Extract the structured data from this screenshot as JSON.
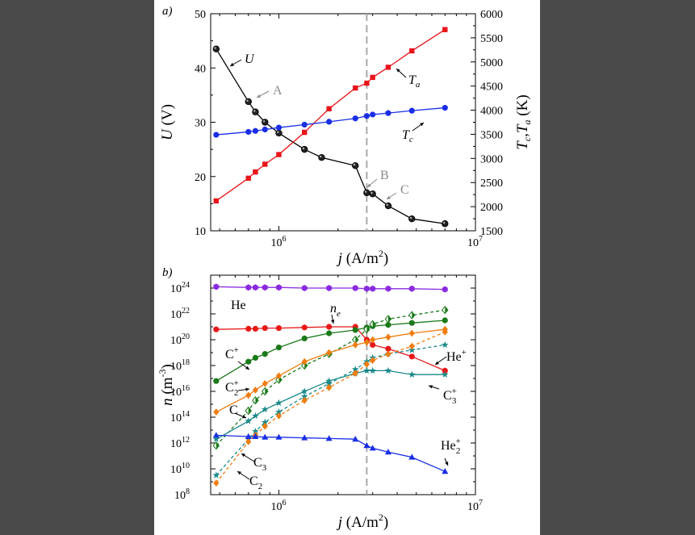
{
  "panel_labels": {
    "a": "a)",
    "b": "b)"
  },
  "chart_data": [
    {
      "type": "line",
      "panel": "a",
      "x_scale": "log",
      "xlim": [
        450000,
        10000000
      ],
      "xticks": [
        {
          "v": 1000000,
          "base": "10",
          "exp": "6"
        },
        {
          "v": 10000000,
          "base": "10",
          "exp": "7"
        }
      ],
      "xlabel": {
        "main": "j",
        "rest": " (A/m",
        "sup": "2",
        "close": ")"
      },
      "ylabel_left": {
        "main": "U",
        "rest": " (V)"
      },
      "ylim_left": [
        10,
        50
      ],
      "yticks_left": [
        "10",
        "20",
        "30",
        "40",
        "50"
      ],
      "ylabel_right": {
        "t1": "T",
        "s1": "c",
        "sep": ",",
        "t2": "T",
        "s2": "a",
        "unit": " (K)"
      },
      "ylim_right": [
        1500,
        6000
      ],
      "yticks_right": [
        "1500",
        "2000",
        "2500",
        "3000",
        "3500",
        "4000",
        "4500",
        "5000",
        "5500",
        "6000"
      ],
      "vline_x": 2800000,
      "series": [
        {
          "name": "U",
          "axis": "left",
          "color": "#000000",
          "marker": "sphere",
          "x": [
            480000,
            700000,
            760000,
            850000,
            1000000,
            1350000,
            1650000,
            2450000,
            2800000,
            3000000,
            3600000,
            4750000,
            7000000
          ],
          "y": [
            43.5,
            33.8,
            31.9,
            30.0,
            28.0,
            25.0,
            23.5,
            22.0,
            17.0,
            16.8,
            14.6,
            12.2,
            11.3
          ]
        },
        {
          "name": "Ta",
          "axis": "right",
          "color": "#e8141a",
          "marker": "square",
          "x": [
            480000,
            700000,
            760000,
            850000,
            1000000,
            1350000,
            1800000,
            2450000,
            2800000,
            3000000,
            3600000,
            4750000,
            7000000
          ],
          "y": [
            2120,
            2590,
            2720,
            2880,
            3080,
            3540,
            4030,
            4460,
            4560,
            4680,
            4890,
            5230,
            5670
          ]
        },
        {
          "name": "Tc",
          "axis": "right",
          "color": "#1a2ee6",
          "marker": "circle",
          "x": [
            480000,
            700000,
            760000,
            850000,
            1000000,
            1350000,
            1800000,
            2450000,
            2800000,
            3000000,
            3600000,
            4750000,
            7000000
          ],
          "y": [
            3490,
            3550,
            3570,
            3600,
            3640,
            3700,
            3760,
            3830,
            3880,
            3910,
            3940,
            3990,
            4050
          ]
        }
      ],
      "annotations": [
        {
          "text": "U",
          "italic": true,
          "color": "#000000"
        },
        {
          "text": "A",
          "italic": false,
          "color": "#8a8a8a"
        },
        {
          "text": "B",
          "italic": false,
          "color": "#8a8a8a"
        },
        {
          "text": "C",
          "italic": false,
          "color": "#8a8a8a"
        },
        {
          "text": "T",
          "sub": "a",
          "italic": true,
          "color": "#000000"
        },
        {
          "text": "T",
          "sub": "c",
          "italic": true,
          "color": "#000000"
        }
      ]
    },
    {
      "type": "line",
      "panel": "b",
      "x_scale": "log",
      "y_scale": "log",
      "xlim": [
        450000,
        10000000
      ],
      "xticks": [
        {
          "v": 1000000,
          "base": "10",
          "exp": "6"
        },
        {
          "v": 10000000,
          "base": "10",
          "exp": "7"
        }
      ],
      "xlabel": {
        "main": "j",
        "rest": " (A/m",
        "sup": "2",
        "close": ")"
      },
      "ylabel": {
        "main": "n",
        "rest": " (m",
        "sup": "-3",
        "close": ")"
      },
      "ylim_exp": [
        8,
        25
      ],
      "yticks_exp": [
        "8",
        "10",
        "12",
        "14",
        "16",
        "18",
        "20",
        "22",
        "24"
      ],
      "vline_x": 2800000,
      "x": [
        480000,
        700000,
        760000,
        850000,
        1000000,
        1350000,
        1800000,
        2450000,
        2800000,
        3000000,
        3600000,
        4750000,
        7000000
      ],
      "series": [
        {
          "name": "He",
          "color": "#8a2be2",
          "marker": "hexagon",
          "dash": false,
          "log10_n": [
            24.1,
            24.05,
            24.05,
            24.05,
            24.05,
            24.0,
            24.0,
            24.0,
            23.95,
            23.95,
            23.95,
            23.95,
            23.9
          ]
        },
        {
          "name": "ne",
          "color": "#e81818",
          "marker": "circle",
          "dash": false,
          "log10_n": [
            20.8,
            20.85,
            20.85,
            20.9,
            20.9,
            20.95,
            21.0,
            21.0,
            20.0,
            19.6,
            19.3,
            18.7,
            17.6
          ]
        },
        {
          "name": "He+",
          "color": "#1a7a1a",
          "marker": "circle",
          "dash": false,
          "log10_n": [
            16.8,
            18.3,
            18.6,
            18.9,
            19.4,
            20.1,
            20.5,
            20.75,
            20.95,
            21.05,
            21.15,
            21.3,
            21.5
          ]
        },
        {
          "name": "C+",
          "color": "#1a7a1a",
          "marker": "halfdiamond",
          "dash": true,
          "log10_n": [
            11.8,
            14.5,
            15.3,
            16.0,
            16.9,
            18.0,
            18.9,
            20.0,
            20.8,
            21.2,
            21.6,
            21.9,
            22.3
          ]
        },
        {
          "name": "C2+",
          "color": "#f07d10",
          "marker": "diamond",
          "dash": false,
          "log10_n": [
            14.4,
            15.7,
            16.1,
            16.6,
            17.2,
            18.3,
            19.0,
            19.6,
            19.8,
            20.0,
            20.2,
            20.5,
            20.8
          ]
        },
        {
          "name": "C",
          "color": "#1a8a8a",
          "marker": "star",
          "dash": false,
          "log10_n": [
            12.3,
            13.7,
            14.1,
            14.6,
            15.1,
            16.0,
            16.8,
            17.4,
            17.6,
            17.6,
            17.6,
            17.3,
            17.3
          ]
        },
        {
          "name": "C3+",
          "color": "#1a8a8a",
          "marker": "star",
          "dash": true,
          "log10_n": [
            9.5,
            12.3,
            12.9,
            13.6,
            14.4,
            15.6,
            16.6,
            17.7,
            18.3,
            18.6,
            18.9,
            19.2,
            19.6
          ]
        },
        {
          "name": "C2",
          "color": "#f07d10",
          "marker": "diamond",
          "dash": true,
          "log10_n": [
            8.9,
            12.1,
            12.6,
            13.3,
            14.1,
            15.3,
            16.3,
            17.4,
            18.1,
            18.4,
            18.9,
            19.5,
            20.6
          ]
        },
        {
          "name": "He2+",
          "color": "#1a2ee6",
          "marker": "triangle",
          "dash": false,
          "log10_n": [
            12.6,
            12.5,
            12.5,
            12.45,
            12.45,
            12.4,
            12.35,
            12.3,
            11.8,
            11.6,
            11.3,
            10.9,
            9.8
          ]
        }
      ],
      "labels": [
        {
          "text": "He"
        },
        {
          "text": "n",
          "sub": "e",
          "italic": true
        },
        {
          "text": "C",
          "sup": "+"
        },
        {
          "text": "C",
          "sub": "2",
          "sup": "+"
        },
        {
          "text": "C"
        },
        {
          "text": "C",
          "sub": "3"
        },
        {
          "text": "C",
          "sub": "2"
        },
        {
          "text": "He",
          "sup": "+"
        },
        {
          "text": "C",
          "sub": "3",
          "sup": "+"
        },
        {
          "text": "He",
          "sub": "2",
          "sup": "+"
        }
      ]
    }
  ]
}
